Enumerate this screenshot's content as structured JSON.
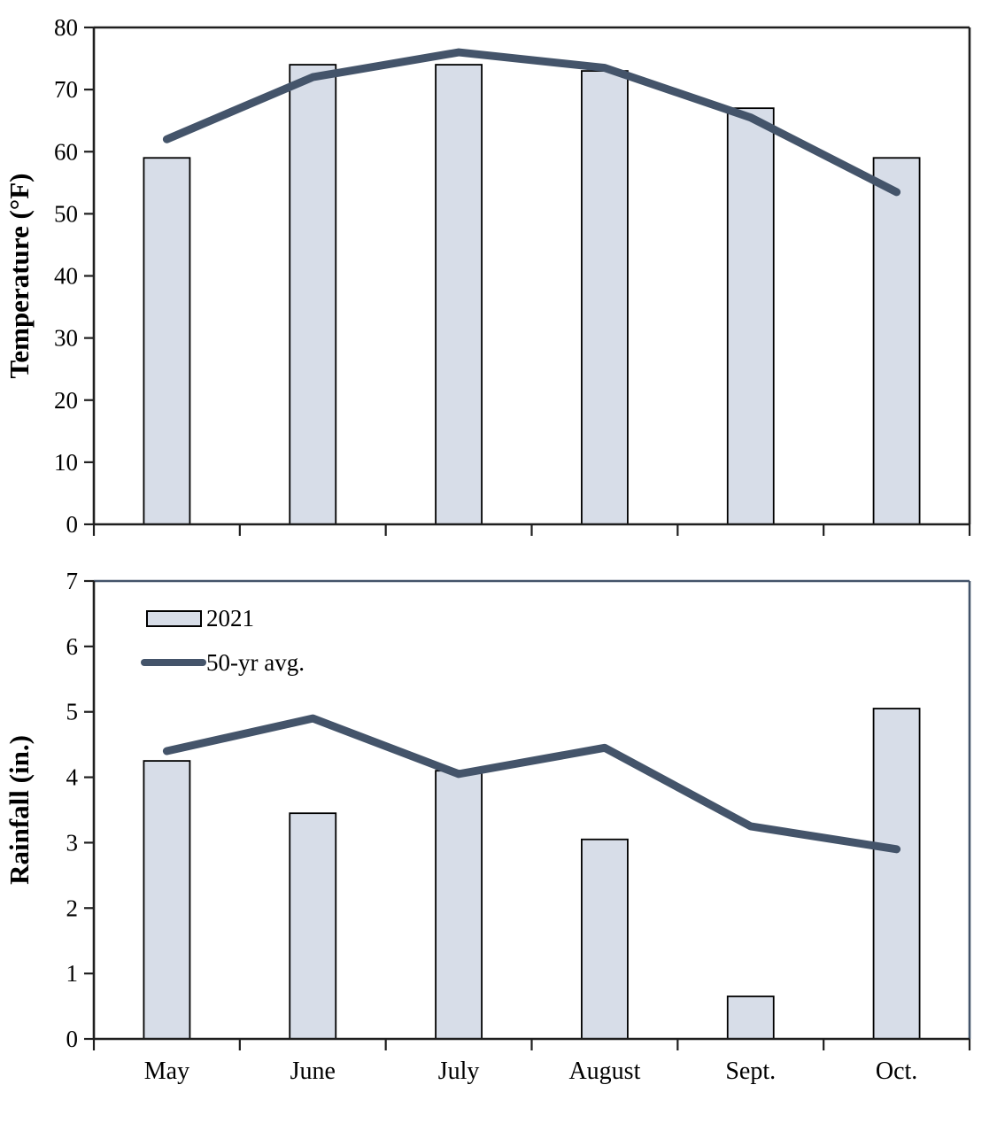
{
  "colors": {
    "bar_fill": "#d7dde8",
    "bar_border": "#000000",
    "line": "#44546a",
    "axis": "#1f1f1f",
    "background": "#ffffff"
  },
  "chart_data": [
    {
      "type": "bar",
      "title": "",
      "ylabel": "Temperature (°F)",
      "xlabel": "",
      "categories": [
        "May",
        "June",
        "July",
        "August",
        "Sept.",
        "Oct."
      ],
      "ylim": [
        0,
        80
      ],
      "ytick_step": 10,
      "yticks": [
        0,
        10,
        20,
        30,
        40,
        50,
        60,
        70,
        80
      ],
      "grid": false,
      "legend_position": "none",
      "x_labels_shown": false,
      "series": [
        {
          "name": "2021",
          "type": "bar",
          "values": [
            59,
            74,
            74,
            73,
            67,
            59
          ]
        },
        {
          "name": "50-yr avg.",
          "type": "line",
          "values": [
            62,
            72,
            76,
            73.5,
            65.5,
            53.5
          ]
        }
      ]
    },
    {
      "type": "bar",
      "title": "",
      "ylabel": "Rainfall (in.)",
      "xlabel": "",
      "categories": [
        "May",
        "June",
        "July",
        "August",
        "Sept.",
        "Oct."
      ],
      "ylim": [
        0,
        7
      ],
      "ytick_step": 1,
      "yticks": [
        0,
        1,
        2,
        3,
        4,
        5,
        6,
        7
      ],
      "grid": false,
      "legend_position": "top-left-inside",
      "x_labels_shown": true,
      "series": [
        {
          "name": "2021",
          "type": "bar",
          "values": [
            4.25,
            3.45,
            4.1,
            3.05,
            0.65,
            5.05
          ]
        },
        {
          "name": "50-yr avg.",
          "type": "line",
          "values": [
            4.4,
            4.9,
            4.05,
            4.45,
            3.25,
            2.9
          ]
        }
      ]
    }
  ]
}
